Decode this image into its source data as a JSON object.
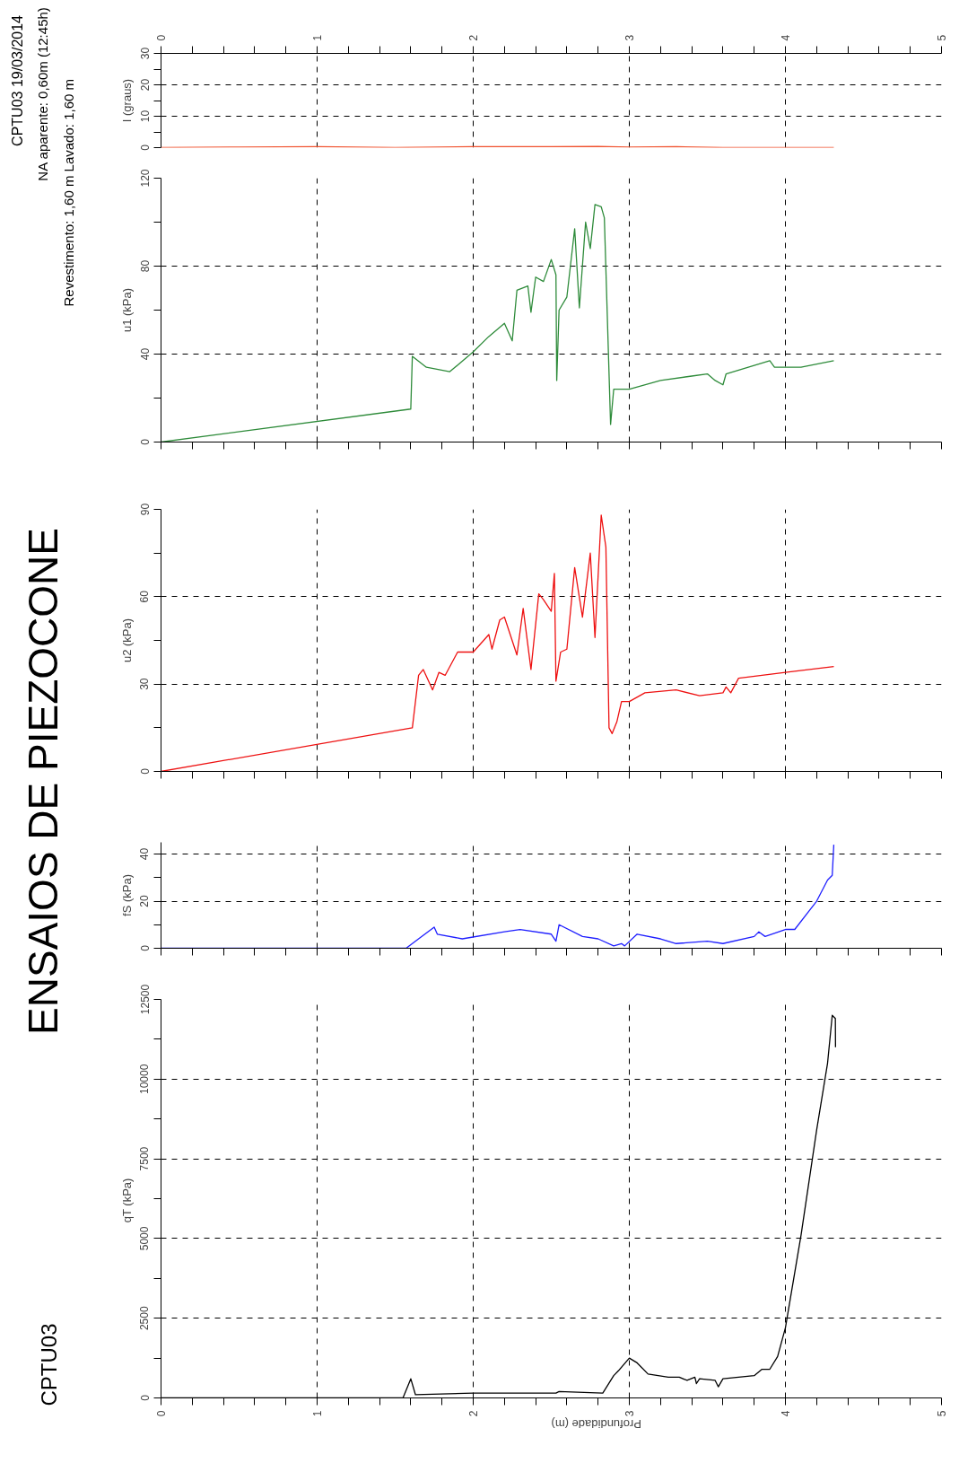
{
  "chart_data": [
    {
      "type": "other",
      "title": "ENSAIOS DE PIEZOCONE",
      "annotations": [
        "CPTU03   19/03/2014",
        "NA aparente: 0,60m (12:45h)",
        "Revestimento: 1,60 m    Lavado: 1,60 m",
        "CPTU03"
      ]
    },
    {
      "type": "line",
      "ylabel": "I (graus)",
      "color": "#f0502c",
      "grid": true,
      "xlim": [
        0,
        5
      ],
      "xticks": [
        0,
        {
          "value": 0.2,
          "label": null
        },
        {
          "value": 0.4,
          "label": null
        },
        {
          "value": 0.6,
          "label": null
        },
        {
          "value": 0.8,
          "label": null
        },
        1,
        {
          "value": 1.2,
          "label": null
        },
        {
          "value": 1.4,
          "label": null
        },
        {
          "value": 1.6,
          "label": null
        },
        {
          "value": 1.8,
          "label": null
        },
        2,
        {
          "value": 2.2,
          "label": null
        },
        {
          "value": 2.4,
          "label": null
        },
        {
          "value": 2.6,
          "label": null
        },
        {
          "value": 2.8,
          "label": null
        },
        3,
        {
          "value": 3.2,
          "label": null
        },
        {
          "value": 3.4,
          "label": null
        },
        {
          "value": 3.6,
          "label": null
        },
        {
          "value": 3.8,
          "label": null
        },
        4,
        {
          "value": 4.2,
          "label": null
        },
        {
          "value": 4.4,
          "label": null
        },
        {
          "value": 4.6,
          "label": null
        },
        {
          "value": 4.8,
          "label": null
        },
        5
      ],
      "ylim": [
        0,
        30
      ],
      "yticks": [
        0,
        {
          "value": 5,
          "label": null
        },
        10,
        {
          "value": 15,
          "label": null
        },
        20,
        {
          "value": 25,
          "label": null
        },
        30
      ],
      "x": [
        0,
        0.5,
        1.0,
        1.5,
        2.0,
        2.5,
        2.8,
        3.0,
        3.3,
        3.6,
        4.0,
        4.31
      ],
      "values": [
        0,
        0.2,
        0.3,
        0,
        0.3,
        0.3,
        0.4,
        0.2,
        0.3,
        0,
        0,
        0
      ]
    },
    {
      "type": "line",
      "ylabel": "u1 (kPa)",
      "color": "#2e8b3a",
      "grid": true,
      "tick_labels": "y",
      "xlim": [
        0,
        5
      ],
      "xticks": [
        0,
        {
          "value": 0.2,
          "label": null
        },
        {
          "value": 0.4,
          "label": null
        },
        {
          "value": 0.6,
          "label": null
        },
        {
          "value": 0.8,
          "label": null
        },
        1,
        {
          "value": 1.2,
          "label": null
        },
        {
          "value": 1.4,
          "label": null
        },
        {
          "value": 1.6,
          "label": null
        },
        {
          "value": 1.8,
          "label": null
        },
        2,
        {
          "value": 2.2,
          "label": null
        },
        {
          "value": 2.4,
          "label": null
        },
        {
          "value": 2.6,
          "label": null
        },
        {
          "value": 2.8,
          "label": null
        },
        3,
        {
          "value": 3.2,
          "label": null
        },
        {
          "value": 3.4,
          "label": null
        },
        {
          "value": 3.6,
          "label": null
        },
        {
          "value": 3.8,
          "label": null
        },
        4,
        {
          "value": 4.2,
          "label": null
        },
        {
          "value": 4.4,
          "label": null
        },
        {
          "value": 4.6,
          "label": null
        },
        {
          "value": 4.8,
          "label": null
        },
        5
      ],
      "ylim": [
        0,
        120
      ],
      "yticks": [
        0,
        {
          "value": 20,
          "label": null
        },
        40,
        {
          "value": 60,
          "label": null
        },
        80,
        {
          "value": 100,
          "label": null
        },
        120
      ],
      "x": [
        0,
        1.6,
        1.61,
        1.7,
        1.85,
        2.0,
        2.1,
        2.2,
        2.25,
        2.28,
        2.35,
        2.37,
        2.4,
        2.45,
        2.5,
        2.53,
        2.535,
        2.55,
        2.6,
        2.65,
        2.68,
        2.72,
        2.75,
        2.78,
        2.82,
        2.84,
        2.88,
        2.9,
        2.95,
        3.0,
        3.2,
        3.4,
        3.5,
        3.55,
        3.6,
        3.62,
        3.9,
        3.93,
        4.1,
        4.31
      ],
      "values": [
        0,
        15,
        39,
        34,
        32,
        41,
        48,
        54,
        46,
        69,
        71,
        59,
        75,
        73,
        83,
        76,
        28,
        60,
        66,
        97,
        61,
        100,
        88,
        108,
        107,
        102,
        8,
        24,
        24,
        24,
        28,
        30,
        31,
        28,
        26,
        31,
        37,
        34,
        34,
        37
      ]
    },
    {
      "type": "line",
      "ylabel": "u2 (kPa)",
      "color": "#ee1111",
      "grid": true,
      "tick_labels": "y",
      "xlim": [
        0,
        5
      ],
      "xticks": [
        0,
        {
          "value": 0.2,
          "label": null
        },
        {
          "value": 0.4,
          "label": null
        },
        {
          "value": 0.6,
          "label": null
        },
        {
          "value": 0.8,
          "label": null
        },
        1,
        {
          "value": 1.2,
          "label": null
        },
        {
          "value": 1.4,
          "label": null
        },
        {
          "value": 1.6,
          "label": null
        },
        {
          "value": 1.8,
          "label": null
        },
        2,
        {
          "value": 2.2,
          "label": null
        },
        {
          "value": 2.4,
          "label": null
        },
        {
          "value": 2.6,
          "label": null
        },
        {
          "value": 2.8,
          "label": null
        },
        3,
        {
          "value": 3.2,
          "label": null
        },
        {
          "value": 3.4,
          "label": null
        },
        {
          "value": 3.6,
          "label": null
        },
        {
          "value": 3.8,
          "label": null
        },
        4,
        {
          "value": 4.2,
          "label": null
        },
        {
          "value": 4.4,
          "label": null
        },
        {
          "value": 4.6,
          "label": null
        },
        {
          "value": 4.8,
          "label": null
        },
        5
      ],
      "ylim": [
        0,
        90
      ],
      "yticks": [
        0,
        {
          "value": 15,
          "label": null
        },
        30,
        {
          "value": 45,
          "label": null
        },
        60,
        {
          "value": 75,
          "label": null
        },
        90
      ],
      "x": [
        0,
        1.61,
        1.65,
        1.68,
        1.74,
        1.78,
        1.82,
        1.9,
        1.95,
        2.0,
        2.1,
        2.12,
        2.17,
        2.2,
        2.28,
        2.32,
        2.37,
        2.42,
        2.45,
        2.5,
        2.52,
        2.53,
        2.56,
        2.6,
        2.65,
        2.7,
        2.75,
        2.78,
        2.82,
        2.85,
        2.87,
        2.89,
        2.92,
        2.95,
        3.0,
        3.1,
        3.3,
        3.45,
        3.6,
        3.62,
        3.65,
        3.7,
        4.0,
        4.31
      ],
      "values": [
        0,
        15,
        33,
        35,
        28,
        34,
        33,
        41,
        41,
        41,
        47,
        42,
        52,
        53,
        40,
        56,
        35,
        61,
        59,
        55,
        68,
        31,
        41,
        42,
        70,
        53,
        75,
        46,
        88,
        77,
        15,
        13,
        17,
        24,
        24,
        27,
        28,
        26,
        27,
        29,
        27,
        32,
        34,
        36
      ]
    },
    {
      "type": "line",
      "ylabel": "fS (kPa)",
      "color": "#1f1fff",
      "grid": true,
      "tick_labels": "y",
      "xlim": [
        0,
        5
      ],
      "xticks": [
        0,
        {
          "value": 0.2,
          "label": null
        },
        {
          "value": 0.4,
          "label": null
        },
        {
          "value": 0.6,
          "label": null
        },
        {
          "value": 0.8,
          "label": null
        },
        1,
        {
          "value": 1.2,
          "label": null
        },
        {
          "value": 1.4,
          "label": null
        },
        {
          "value": 1.6,
          "label": null
        },
        {
          "value": 1.8,
          "label": null
        },
        2,
        {
          "value": 2.2,
          "label": null
        },
        {
          "value": 2.4,
          "label": null
        },
        {
          "value": 2.6,
          "label": null
        },
        {
          "value": 2.8,
          "label": null
        },
        3,
        {
          "value": 3.2,
          "label": null
        },
        {
          "value": 3.4,
          "label": null
        },
        {
          "value": 3.6,
          "label": null
        },
        {
          "value": 3.8,
          "label": null
        },
        4,
        {
          "value": 4.2,
          "label": null
        },
        {
          "value": 4.4,
          "label": null
        },
        {
          "value": 4.6,
          "label": null
        },
        {
          "value": 4.8,
          "label": null
        },
        5
      ],
      "ylim": [
        0,
        45
      ],
      "yticks": [
        0,
        {
          "value": 10,
          "label": null
        },
        20,
        {
          "value": 30,
          "label": null
        },
        40
      ],
      "x": [
        0,
        1.57,
        1.65,
        1.75,
        1.77,
        1.93,
        2.2,
        2.3,
        2.5,
        2.53,
        2.55,
        2.7,
        2.8,
        2.9,
        2.95,
        2.97,
        3.05,
        3.2,
        3.3,
        3.5,
        3.6,
        3.8,
        3.83,
        3.87,
        4.0,
        4.06,
        4.2,
        4.27,
        4.3,
        4.31
      ],
      "values": [
        0,
        0,
        4,
        9,
        6,
        4,
        7,
        8,
        6,
        3,
        10,
        5,
        4,
        1,
        2,
        1,
        6,
        4,
        2,
        3,
        2,
        5,
        7,
        5,
        8,
        8,
        20,
        29,
        31,
        44
      ]
    },
    {
      "type": "line",
      "ylabel": "qT  (kPa)",
      "xlabel": "Profundidade (m)",
      "color": "#000000",
      "grid": true,
      "xlim": [
        0,
        5
      ],
      "xticks": [
        0,
        {
          "value": 0.2,
          "label": null
        },
        {
          "value": 0.4,
          "label": null
        },
        {
          "value": 0.6,
          "label": null
        },
        {
          "value": 0.8,
          "label": null
        },
        1,
        {
          "value": 1.2,
          "label": null
        },
        {
          "value": 1.4,
          "label": null
        },
        {
          "value": 1.6,
          "label": null
        },
        {
          "value": 1.8,
          "label": null
        },
        2,
        {
          "value": 2.2,
          "label": null
        },
        {
          "value": 2.4,
          "label": null
        },
        {
          "value": 2.6,
          "label": null
        },
        {
          "value": 2.8,
          "label": null
        },
        3,
        {
          "value": 3.2,
          "label": null
        },
        {
          "value": 3.4,
          "label": null
        },
        {
          "value": 3.6,
          "label": null
        },
        {
          "value": 3.8,
          "label": null
        },
        4,
        {
          "value": 4.2,
          "label": null
        },
        {
          "value": 4.4,
          "label": null
        },
        {
          "value": 4.6,
          "label": null
        },
        {
          "value": 4.8,
          "label": null
        },
        5
      ],
      "ylim": [
        0,
        12500
      ],
      "yticks": [
        0,
        {
          "value": 1250,
          "label": null
        },
        2500,
        {
          "value": 3750,
          "label": null
        },
        5000,
        {
          "value": 6250,
          "label": null
        },
        7500,
        {
          "value": 8750,
          "label": null
        },
        10000,
        {
          "value": 11250,
          "label": null
        },
        12500
      ],
      "x": [
        0,
        1.55,
        1.6,
        1.63,
        2.0,
        2.53,
        2.55,
        2.83,
        2.9,
        2.93,
        3.0,
        3.05,
        3.12,
        3.25,
        3.32,
        3.37,
        3.42,
        3.43,
        3.45,
        3.55,
        3.57,
        3.6,
        3.8,
        3.85,
        3.9,
        3.95,
        4.0,
        4.1,
        4.2,
        4.27,
        4.3,
        4.32,
        4.321
      ],
      "values": [
        0,
        0,
        600,
        100,
        150,
        150,
        200,
        150,
        700,
        850,
        1250,
        1100,
        750,
        650,
        650,
        550,
        650,
        450,
        600,
        550,
        350,
        600,
        700,
        900,
        900,
        1300,
        2200,
        5100,
        8400,
        10500,
        12000,
        11900,
        11000
      ]
    }
  ]
}
